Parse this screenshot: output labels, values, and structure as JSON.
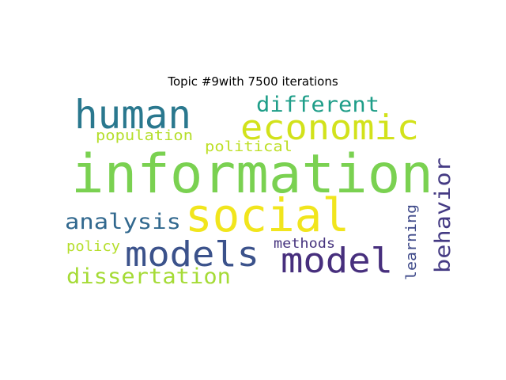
{
  "title": "Topic #9with 7500 iterations",
  "words": [
    {
      "text": "information",
      "color": "#7ad151",
      "rotated": false
    },
    {
      "text": "social",
      "color": "#f1e51d",
      "rotated": false
    },
    {
      "text": "human",
      "color": "#2a788e",
      "rotated": false
    },
    {
      "text": "economic",
      "color": "#d2e21b",
      "rotated": false
    },
    {
      "text": "models",
      "color": "#3b528b",
      "rotated": false
    },
    {
      "text": "model",
      "color": "#472f7d",
      "rotated": false
    },
    {
      "text": "different",
      "color": "#1f9e89",
      "rotated": false
    },
    {
      "text": "analysis",
      "color": "#31688e",
      "rotated": false
    },
    {
      "text": "dissertation",
      "color": "#a5db36",
      "rotated": false
    },
    {
      "text": "behavior",
      "color": "#443a83",
      "rotated": true
    },
    {
      "text": "population",
      "color": "#b5de2b",
      "rotated": false
    },
    {
      "text": "political",
      "color": "#bddf26",
      "rotated": false
    },
    {
      "text": "policy",
      "color": "#b5de2b",
      "rotated": false
    },
    {
      "text": "methods",
      "color": "#46337e",
      "rotated": false
    },
    {
      "text": "learning",
      "color": "#3e4989",
      "rotated": true
    }
  ]
}
